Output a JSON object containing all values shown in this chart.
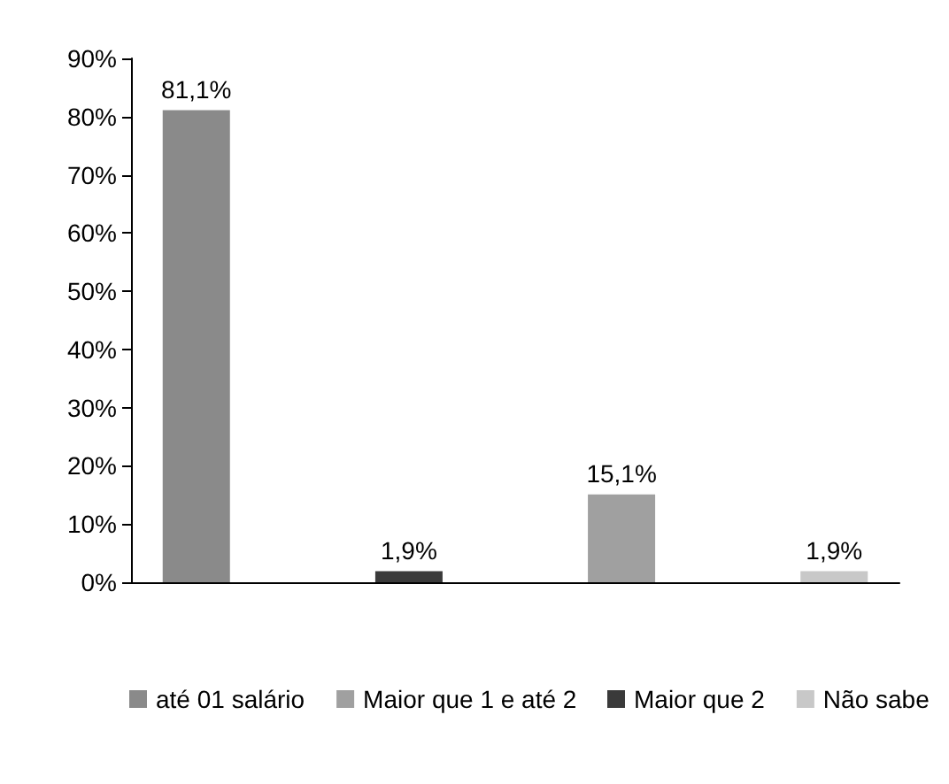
{
  "chart_data": {
    "type": "bar",
    "categories": [
      null
    ],
    "series": [
      {
        "name": "até 01 salário",
        "color": "#8a8a8a",
        "values": [
          81.1
        ],
        "value_labels": [
          "81,1%"
        ]
      },
      {
        "name": "Maior que 2",
        "color": "#3a3a3a",
        "values": [
          1.9
        ],
        "value_labels": [
          "1,9%"
        ]
      },
      {
        "name": "Maior que 1 e até 2",
        "color": "#a0a0a0",
        "values": [
          15.1
        ],
        "value_labels": [
          "15,1%"
        ]
      },
      {
        "name": "Não sabe",
        "color": "#c8c8c8",
        "values": [
          1.9
        ],
        "value_labels": [
          "1,9%"
        ]
      }
    ],
    "ylim": [
      0,
      90
    ],
    "yticks": [
      {
        "value": 0,
        "label": "0%"
      },
      {
        "value": 10,
        "label": "10%"
      },
      {
        "value": 20,
        "label": "20%"
      },
      {
        "value": 30,
        "label": "30%"
      },
      {
        "value": 40,
        "label": "40%"
      },
      {
        "value": 50,
        "label": "50%"
      },
      {
        "value": 60,
        "label": "60%"
      },
      {
        "value": 70,
        "label": "70%"
      },
      {
        "value": 80,
        "label": "80%"
      },
      {
        "value": 90,
        "label": "90%"
      }
    ],
    "grid": false,
    "legend": "bottom"
  }
}
